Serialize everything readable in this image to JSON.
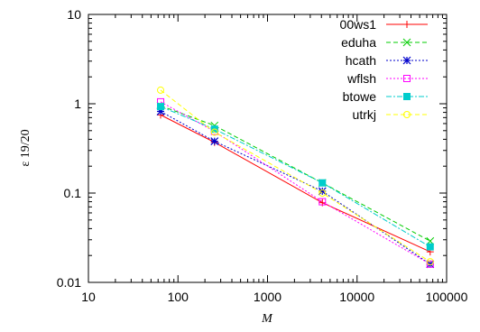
{
  "chart_data": {
    "type": "line",
    "xlabel": "M",
    "ylabel": "ε 19/20",
    "xscale": "log",
    "yscale": "log",
    "xlim": [
      10,
      100000
    ],
    "ylim": [
      0.01,
      10
    ],
    "x_ticks": [
      "10",
      "100",
      "1000",
      "10000",
      "100000"
    ],
    "y_ticks": [
      "0.01",
      "0.1",
      "1",
      "10"
    ],
    "grid": false,
    "legend_position": "top-right",
    "x": [
      64,
      256,
      4096,
      65536
    ],
    "series": [
      {
        "name": "00ws1",
        "color": "#ff0000",
        "marker": "plus",
        "dash": "solid",
        "values": [
          0.75,
          0.37,
          0.078,
          0.022
        ]
      },
      {
        "name": "eduha",
        "color": "#00cc00",
        "marker": "x",
        "dash": "dashed",
        "values": [
          0.95,
          0.57,
          0.13,
          0.029
        ]
      },
      {
        "name": "hcath",
        "color": "#0000cc",
        "marker": "star",
        "dash": "dotted",
        "values": [
          0.82,
          0.38,
          0.105,
          0.016
        ]
      },
      {
        "name": "wflsh",
        "color": "#ff00ff",
        "marker": "square",
        "dash": "dotted",
        "values": [
          1.05,
          0.49,
          0.08,
          0.016
        ]
      },
      {
        "name": "btowe",
        "color": "#00cccc",
        "marker": "filled-square",
        "dash": "dashdot",
        "values": [
          0.93,
          0.52,
          0.13,
          0.025
        ]
      },
      {
        "name": "utrkj",
        "color": "#ffff00",
        "marker": "circle",
        "dash": "dashed",
        "values": [
          1.42,
          0.48,
          0.1,
          0.017
        ]
      }
    ]
  }
}
